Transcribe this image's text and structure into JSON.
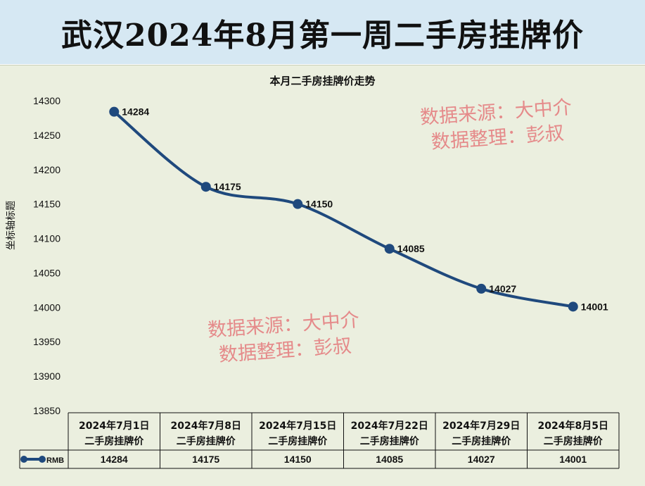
{
  "banner": {
    "title": "武汉2024年8月第一周二手房挂牌价"
  },
  "watermark": {
    "line1": "数据来源：大中介",
    "line2": "数据整理：彭叔"
  },
  "chart_data": {
    "type": "line",
    "title": "本月二手房挂牌价走势",
    "ylabel": "坐标轴标题",
    "xlabel": "",
    "ylim": [
      13850,
      14300
    ],
    "yticks": [
      "14300",
      "14250",
      "14200",
      "14150",
      "14100",
      "14050",
      "14000",
      "13950",
      "13900",
      "13850"
    ],
    "smooth": true,
    "categories": [
      [
        "2024年7月1日",
        "二手房挂牌价"
      ],
      [
        "2024年7月8日",
        "二手房挂牌价"
      ],
      [
        "2024年7月15日",
        "二手房挂牌价"
      ],
      [
        "2024年7月22日",
        "二手房挂牌价"
      ],
      [
        "2024年7月29日",
        "二手房挂牌价"
      ],
      [
        "2024年8月5日",
        "二手房挂牌价"
      ]
    ],
    "series": [
      {
        "name": "RMB",
        "values": [
          14284,
          14175,
          14150,
          14085,
          14027,
          14001
        ]
      }
    ],
    "data_labels": [
      "14284",
      "14175",
      "14150",
      "14085",
      "14027",
      "14001"
    ],
    "data_table": true,
    "colors": {
      "line": "#1f497d",
      "background": "#ebefdf",
      "banner": "#d6e8f3",
      "watermark": "#e58a8a"
    }
  }
}
